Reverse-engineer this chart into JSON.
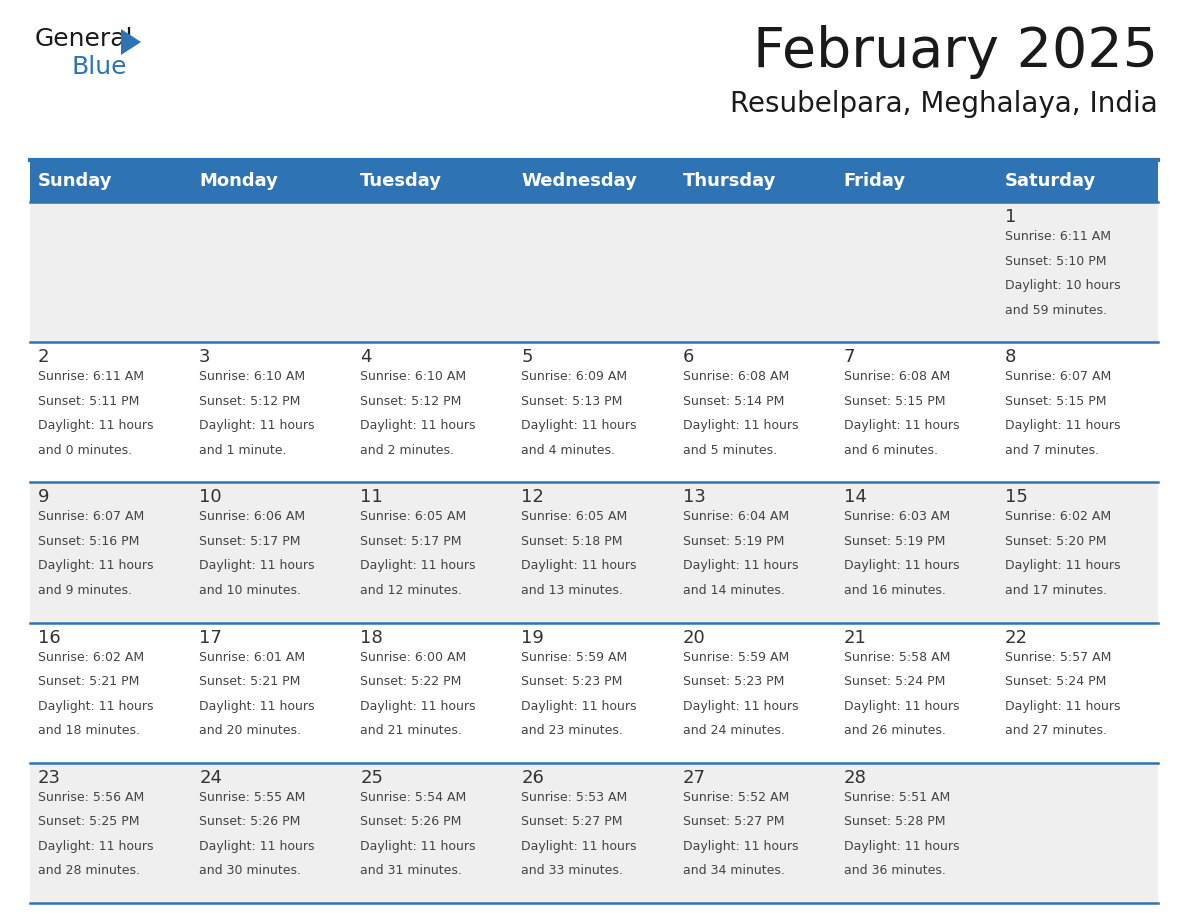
{
  "title": "February 2025",
  "subtitle": "Resubelpara, Meghalaya, India",
  "header_color": "#2E74B5",
  "header_text_color": "#FFFFFF",
  "day_names": [
    "Sunday",
    "Monday",
    "Tuesday",
    "Wednesday",
    "Thursday",
    "Friday",
    "Saturday"
  ],
  "days": [
    {
      "day": 1,
      "col": 6,
      "row": 0,
      "sunrise": "6:11 AM",
      "sunset": "5:10 PM",
      "daylight_h": "10 hours",
      "daylight_m": "and 59 minutes."
    },
    {
      "day": 2,
      "col": 0,
      "row": 1,
      "sunrise": "6:11 AM",
      "sunset": "5:11 PM",
      "daylight_h": "11 hours",
      "daylight_m": "and 0 minutes."
    },
    {
      "day": 3,
      "col": 1,
      "row": 1,
      "sunrise": "6:10 AM",
      "sunset": "5:12 PM",
      "daylight_h": "11 hours",
      "daylight_m": "and 1 minute."
    },
    {
      "day": 4,
      "col": 2,
      "row": 1,
      "sunrise": "6:10 AM",
      "sunset": "5:12 PM",
      "daylight_h": "11 hours",
      "daylight_m": "and 2 minutes."
    },
    {
      "day": 5,
      "col": 3,
      "row": 1,
      "sunrise": "6:09 AM",
      "sunset": "5:13 PM",
      "daylight_h": "11 hours",
      "daylight_m": "and 4 minutes."
    },
    {
      "day": 6,
      "col": 4,
      "row": 1,
      "sunrise": "6:08 AM",
      "sunset": "5:14 PM",
      "daylight_h": "11 hours",
      "daylight_m": "and 5 minutes."
    },
    {
      "day": 7,
      "col": 5,
      "row": 1,
      "sunrise": "6:08 AM",
      "sunset": "5:15 PM",
      "daylight_h": "11 hours",
      "daylight_m": "and 6 minutes."
    },
    {
      "day": 8,
      "col": 6,
      "row": 1,
      "sunrise": "6:07 AM",
      "sunset": "5:15 PM",
      "daylight_h": "11 hours",
      "daylight_m": "and 7 minutes."
    },
    {
      "day": 9,
      "col": 0,
      "row": 2,
      "sunrise": "6:07 AM",
      "sunset": "5:16 PM",
      "daylight_h": "11 hours",
      "daylight_m": "and 9 minutes."
    },
    {
      "day": 10,
      "col": 1,
      "row": 2,
      "sunrise": "6:06 AM",
      "sunset": "5:17 PM",
      "daylight_h": "11 hours",
      "daylight_m": "and 10 minutes."
    },
    {
      "day": 11,
      "col": 2,
      "row": 2,
      "sunrise": "6:05 AM",
      "sunset": "5:17 PM",
      "daylight_h": "11 hours",
      "daylight_m": "and 12 minutes."
    },
    {
      "day": 12,
      "col": 3,
      "row": 2,
      "sunrise": "6:05 AM",
      "sunset": "5:18 PM",
      "daylight_h": "11 hours",
      "daylight_m": "and 13 minutes."
    },
    {
      "day": 13,
      "col": 4,
      "row": 2,
      "sunrise": "6:04 AM",
      "sunset": "5:19 PM",
      "daylight_h": "11 hours",
      "daylight_m": "and 14 minutes."
    },
    {
      "day": 14,
      "col": 5,
      "row": 2,
      "sunrise": "6:03 AM",
      "sunset": "5:19 PM",
      "daylight_h": "11 hours",
      "daylight_m": "and 16 minutes."
    },
    {
      "day": 15,
      "col": 6,
      "row": 2,
      "sunrise": "6:02 AM",
      "sunset": "5:20 PM",
      "daylight_h": "11 hours",
      "daylight_m": "and 17 minutes."
    },
    {
      "day": 16,
      "col": 0,
      "row": 3,
      "sunrise": "6:02 AM",
      "sunset": "5:21 PM",
      "daylight_h": "11 hours",
      "daylight_m": "and 18 minutes."
    },
    {
      "day": 17,
      "col": 1,
      "row": 3,
      "sunrise": "6:01 AM",
      "sunset": "5:21 PM",
      "daylight_h": "11 hours",
      "daylight_m": "and 20 minutes."
    },
    {
      "day": 18,
      "col": 2,
      "row": 3,
      "sunrise": "6:00 AM",
      "sunset": "5:22 PM",
      "daylight_h": "11 hours",
      "daylight_m": "and 21 minutes."
    },
    {
      "day": 19,
      "col": 3,
      "row": 3,
      "sunrise": "5:59 AM",
      "sunset": "5:23 PM",
      "daylight_h": "11 hours",
      "daylight_m": "and 23 minutes."
    },
    {
      "day": 20,
      "col": 4,
      "row": 3,
      "sunrise": "5:59 AM",
      "sunset": "5:23 PM",
      "daylight_h": "11 hours",
      "daylight_m": "and 24 minutes."
    },
    {
      "day": 21,
      "col": 5,
      "row": 3,
      "sunrise": "5:58 AM",
      "sunset": "5:24 PM",
      "daylight_h": "11 hours",
      "daylight_m": "and 26 minutes."
    },
    {
      "day": 22,
      "col": 6,
      "row": 3,
      "sunrise": "5:57 AM",
      "sunset": "5:24 PM",
      "daylight_h": "11 hours",
      "daylight_m": "and 27 minutes."
    },
    {
      "day": 23,
      "col": 0,
      "row": 4,
      "sunrise": "5:56 AM",
      "sunset": "5:25 PM",
      "daylight_h": "11 hours",
      "daylight_m": "and 28 minutes."
    },
    {
      "day": 24,
      "col": 1,
      "row": 4,
      "sunrise": "5:55 AM",
      "sunset": "5:26 PM",
      "daylight_h": "11 hours",
      "daylight_m": "and 30 minutes."
    },
    {
      "day": 25,
      "col": 2,
      "row": 4,
      "sunrise": "5:54 AM",
      "sunset": "5:26 PM",
      "daylight_h": "11 hours",
      "daylight_m": "and 31 minutes."
    },
    {
      "day": 26,
      "col": 3,
      "row": 4,
      "sunrise": "5:53 AM",
      "sunset": "5:27 PM",
      "daylight_h": "11 hours",
      "daylight_m": "and 33 minutes."
    },
    {
      "day": 27,
      "col": 4,
      "row": 4,
      "sunrise": "5:52 AM",
      "sunset": "5:27 PM",
      "daylight_h": "11 hours",
      "daylight_m": "and 34 minutes."
    },
    {
      "day": 28,
      "col": 5,
      "row": 4,
      "sunrise": "5:51 AM",
      "sunset": "5:28 PM",
      "daylight_h": "11 hours",
      "daylight_m": "and 36 minutes."
    }
  ],
  "num_rows": 5,
  "num_cols": 7,
  "bg_color": "#FFFFFF",
  "cell_bg_row0": "#EFEFEF",
  "cell_bg_alt": [
    "#FFFFFF",
    "#EFEFEF"
  ],
  "line_color": "#2E74B5",
  "day_number_color": "#333333",
  "cell_text_color": "#444444",
  "logo_general_color": "#1a1a1a",
  "logo_blue_color": "#2E74B5",
  "title_fontsize": 40,
  "subtitle_fontsize": 20,
  "header_fontsize": 13,
  "day_num_fontsize": 13,
  "cell_text_fontsize": 9
}
